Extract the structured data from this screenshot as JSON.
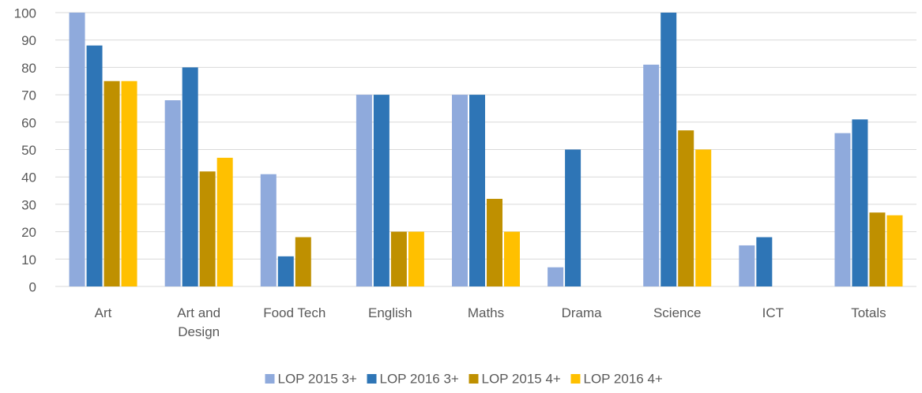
{
  "chart_data": {
    "type": "bar",
    "categories": [
      "Art",
      "Art and Design",
      "Food Tech",
      "English",
      "Maths",
      "Drama",
      "Science",
      "ICT",
      "Totals"
    ],
    "series": [
      {
        "name": "LOP 2015 3+",
        "color": "#8faadc",
        "values": [
          100,
          68,
          41,
          70,
          70,
          7,
          81,
          15,
          56
        ]
      },
      {
        "name": "LOP 2016 3+",
        "color": "#2e75b6",
        "values": [
          88,
          80,
          11,
          70,
          70,
          50,
          100,
          18,
          61
        ]
      },
      {
        "name": "LOP 2015 4+",
        "color": "#bf9000",
        "values": [
          75,
          42,
          18,
          20,
          32,
          0,
          57,
          0,
          27
        ]
      },
      {
        "name": "LOP 2016 4+",
        "color": "#ffc000",
        "values": [
          75,
          47,
          0,
          20,
          20,
          0,
          50,
          0,
          26
        ]
      }
    ],
    "ylim": [
      0,
      100
    ],
    "yticks": [
      0,
      10,
      20,
      30,
      40,
      50,
      60,
      70,
      80,
      90,
      100
    ],
    "grid": true,
    "legend": "bottom"
  }
}
